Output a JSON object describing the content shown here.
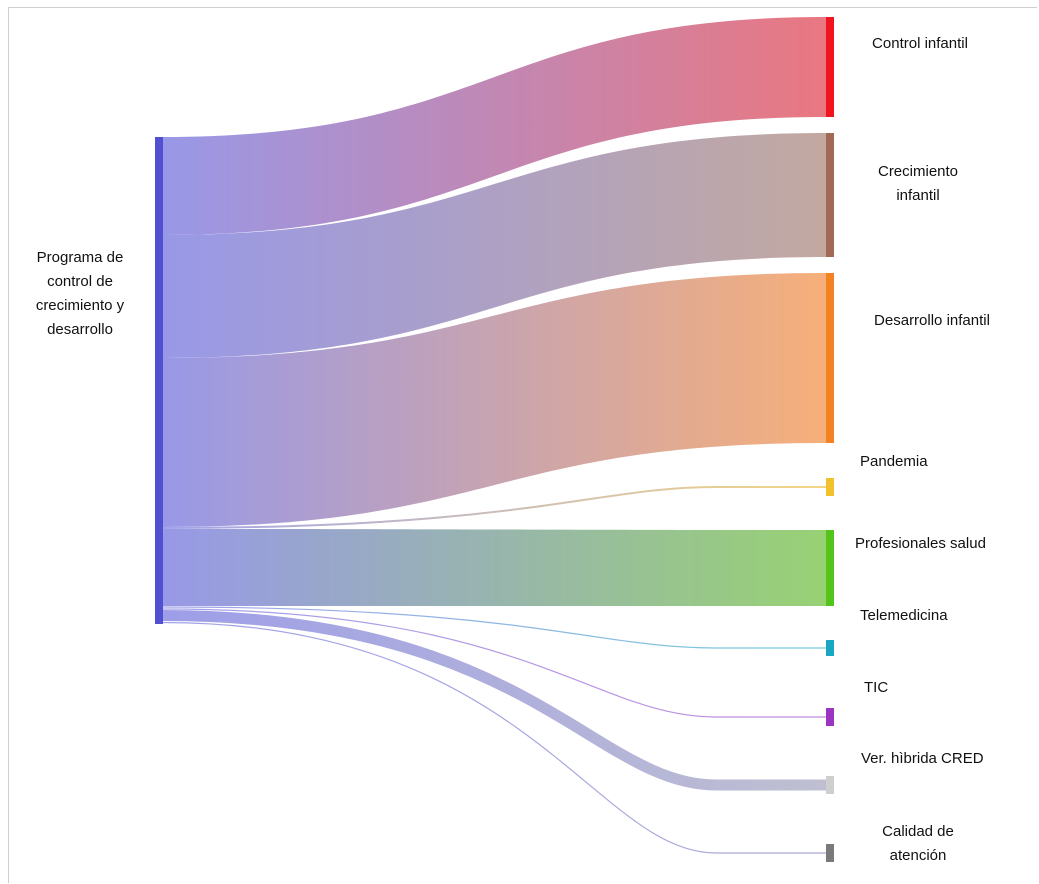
{
  "diagram": {
    "type": "sankey",
    "source": {
      "label_lines": [
        "Programa de",
        "control de",
        "crecimiento y",
        "desarrollo"
      ],
      "color": "#5050d0",
      "flow_color": "#9393e6"
    },
    "targets": [
      {
        "id": "control-infantil",
        "label_lines": [
          "Control infantil"
        ],
        "color": "#f0141e",
        "flow_color": "#e8707a"
      },
      {
        "id": "crecimiento-infantil",
        "label_lines": [
          "Crecimiento",
          "infantil"
        ],
        "color": "#a06a55",
        "flow_color": "#bfa49b"
      },
      {
        "id": "desarrollo-infantil",
        "label_lines": [
          "Desarrollo infantil"
        ],
        "color": "#f58220",
        "flow_color": "#f6ab72"
      },
      {
        "id": "pandemia",
        "label_lines": [
          "Pandemia"
        ],
        "color": "#f2c12e",
        "flow_color": "#f0cf70"
      },
      {
        "id": "profesionales-salud",
        "label_lines": [
          "Profesionales salud"
        ],
        "color": "#52c41a",
        "flow_color": "#92cf6c"
      },
      {
        "id": "telemedicina",
        "label_lines": [
          "Telemedicina"
        ],
        "color": "#1aa7c0",
        "flow_color": "#5fc0d6"
      },
      {
        "id": "tic",
        "label_lines": [
          "TIC"
        ],
        "color": "#9b34c2",
        "flow_color": "#b97ad8"
      },
      {
        "id": "ver-hibrida-cred",
        "label_lines": [
          "Ver. hìbrida CRED"
        ],
        "color": "#cfcfcf",
        "flow_color": "#b8b8cc"
      },
      {
        "id": "calidad-de-atencion",
        "label_lines": [
          "Calidad de",
          "atención"
        ],
        "color": "#7a7a7a",
        "flow_color": "#9a9ad0"
      }
    ]
  }
}
